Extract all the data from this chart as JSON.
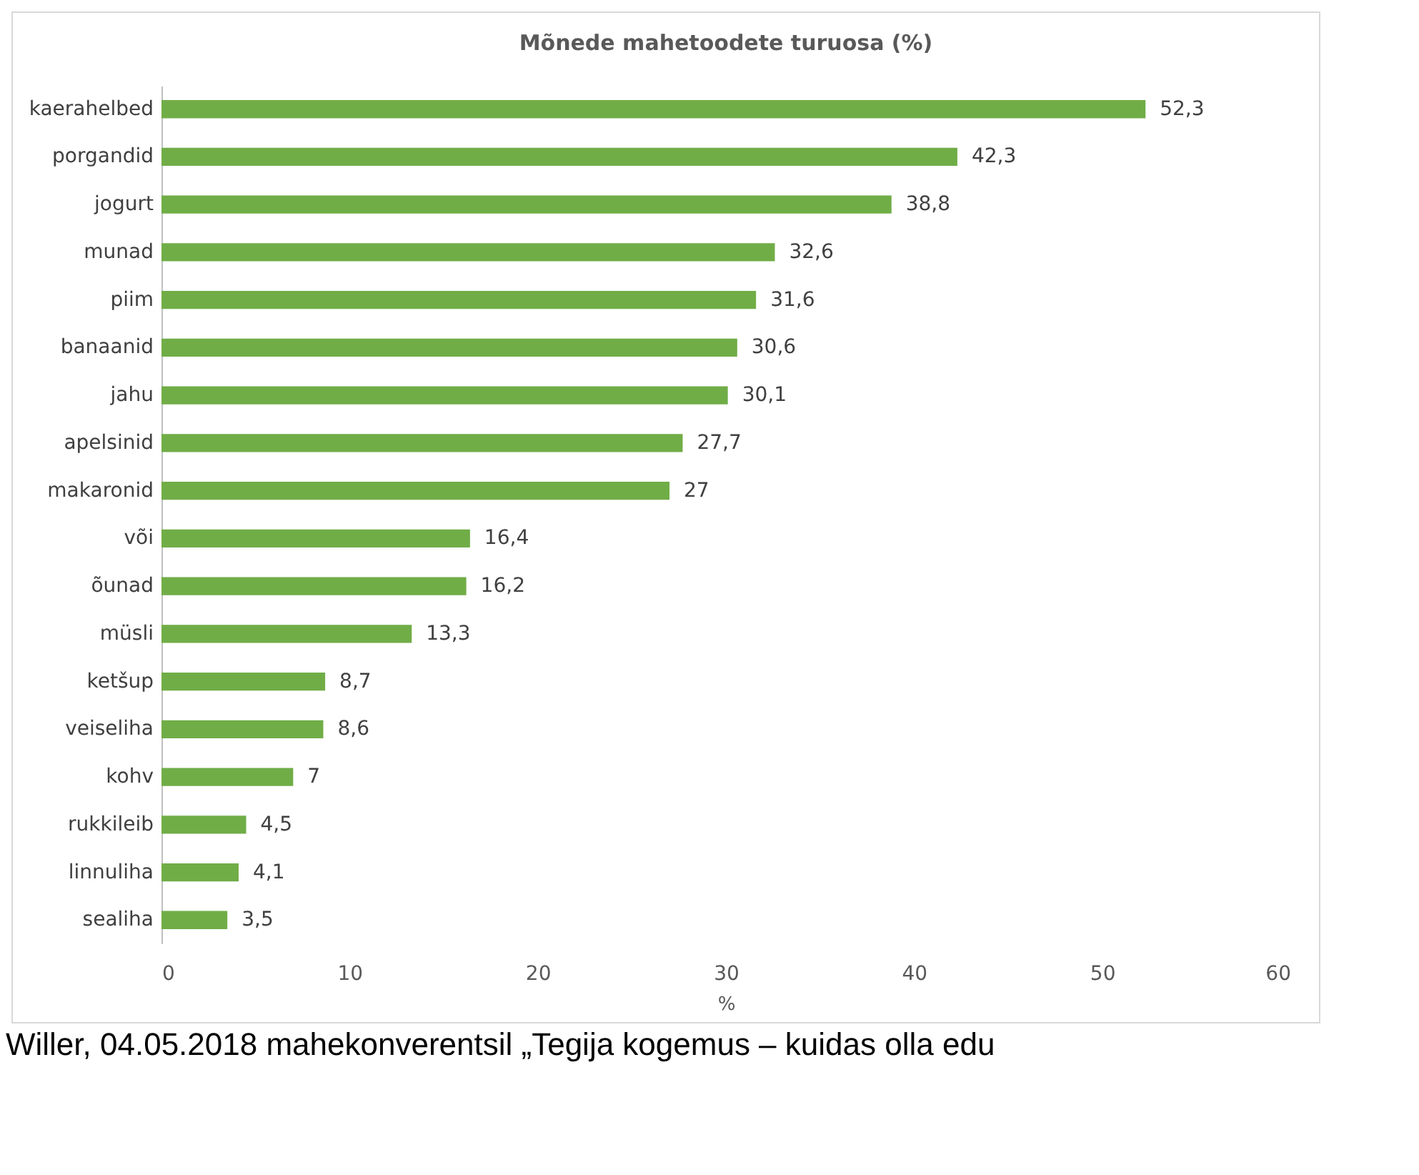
{
  "chart_data": {
    "type": "bar",
    "orientation": "horizontal",
    "title": "Mõnede mahetoodete turuosa (%)",
    "xlabel": "%",
    "categories": [
      "kaerahelbed",
      "porgandid",
      "jogurt",
      "munad",
      "piim",
      "banaanid",
      "jahu",
      "apelsinid",
      "makaronid",
      "või",
      "õunad",
      "müsli",
      "ketšup",
      "veiseliha",
      "kohv",
      "rukkileib",
      "linnuliha",
      "sealiha"
    ],
    "values": [
      52.3,
      42.3,
      38.8,
      32.6,
      31.6,
      30.6,
      30.1,
      27.7,
      27,
      16.4,
      16.2,
      13.3,
      8.7,
      8.6,
      7,
      4.5,
      4.1,
      3.5
    ],
    "color": "#70ad47",
    "xlim": [
      0,
      60
    ],
    "xticks": [
      0,
      10,
      20,
      30,
      40,
      50,
      60
    ],
    "grid": false,
    "value_labels": [
      "52,3",
      "42,3",
      "38,8",
      "32,6",
      "31,6",
      "30,6",
      "30,1",
      "27,7",
      "27",
      "16,4",
      "16,2",
      "13,3",
      "8,7",
      "8,6",
      "7",
      "4,5",
      "4,1",
      "3,5"
    ],
    "annotations": [
      "Willer, 04.05.2018 mahekonverentsil „Tegija kogemus – kuidas olla edu"
    ]
  }
}
